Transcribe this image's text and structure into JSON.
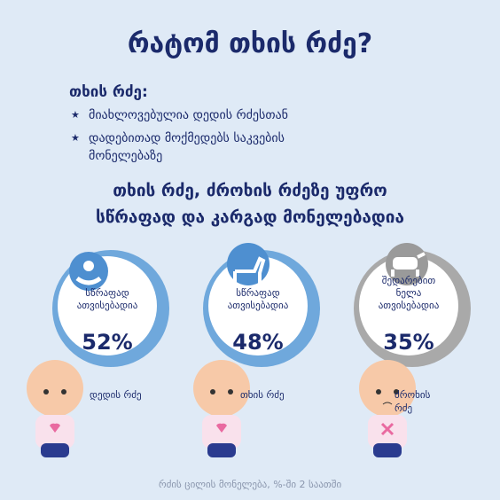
{
  "header": {
    "title": "რატომ თხის რძე?"
  },
  "intro": {
    "heading": "თხის რძე:",
    "bullets": [
      "მიახლოვებულია დედის რძესთან",
      "დადებითად მოქმედებს საკვების მონელებაზე"
    ]
  },
  "headline": {
    "lines": [
      "თხის რძე, ძროხის რძეზე უფრო",
      "სწრაფად და კარგად მონელებადია"
    ]
  },
  "cards": [
    {
      "label_lines": [
        "სწრაფად",
        "ათვისებადია"
      ],
      "percent": "52%",
      "caption_lines": [
        "დედის რძე"
      ]
    },
    {
      "label_lines": [
        "სწრაფად",
        "ათვისებადია"
      ],
      "percent": "48%",
      "caption_lines": [
        "თხის რძე"
      ]
    },
    {
      "label_lines": [
        "შედარებით",
        "ნელა",
        "ათვისებადია"
      ],
      "percent": "35%",
      "caption_lines": [
        "ძროხის",
        "რძე"
      ]
    }
  ],
  "footer": {
    "note": "რძის ცილის მონელება, %-ში 2 საათში"
  }
}
